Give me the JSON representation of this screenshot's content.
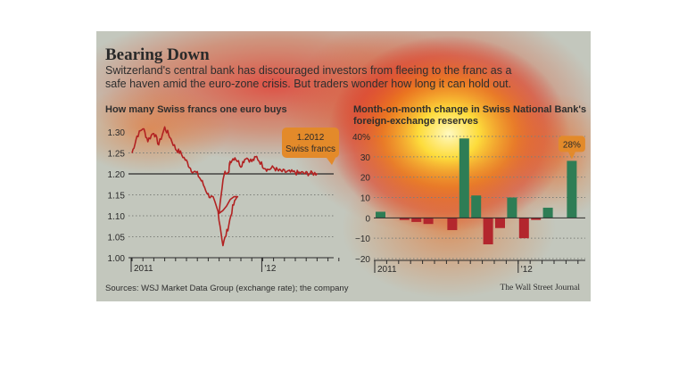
{
  "headline": "Bearing Down",
  "dek": [
    "Switzerland's central bank has discouraged investors from fleeing to the franc as a",
    "safe haven amid the euro-zone crisis. But traders wonder how long it can hold out."
  ],
  "sources": "Sources: WSJ Market Data Group (exchange rate); the company",
  "credit": "The Wall Street Journal",
  "colors": {
    "background": "#c3c7bd",
    "line": "#b22222",
    "bar_positive": "#2e7d55",
    "bar_negative": "#b3262d",
    "callout": "#e38a2a"
  },
  "chart_data": [
    {
      "type": "line",
      "title": "How many Swiss francs one euro buys",
      "ylim": [
        1.0,
        1.3
      ],
      "y_ticks": [
        "1.30",
        "1.25",
        "1.20",
        "1.15",
        "1.10",
        "1.05",
        "1.00"
      ],
      "x_tick_labels": [
        "2011",
        "'12"
      ],
      "reference_line": 1.2,
      "annotation": [
        "1.2012",
        "Swiss francs"
      ],
      "series": [
        {
          "x": [
            "2011-01",
            "2011-01",
            "2011-02",
            "2011-02",
            "2011-03",
            "2011-03",
            "2011-04",
            "2011-04",
            "2011-05",
            "2011-05",
            "2011-06",
            "2011-06",
            "2011-07",
            "2011-07",
            "2011-08",
            "2011-08",
            "2011-08",
            "2011-08",
            "2011-08",
            "2011-08",
            "2011-08",
            "2011-09",
            "2011-09",
            "2011-09",
            "2011-10",
            "2011-10",
            "2011-11",
            "2011-11",
            "2011-12",
            "2011-12",
            "2012-01",
            "2012-01",
            "2012-02",
            "2012-02",
            "2012-03",
            "2012-03",
            "2012-04",
            "2012-04",
            "2012-05",
            "2012-05",
            "2012-06"
          ],
          "values": [
            1.25,
            1.29,
            1.31,
            1.28,
            1.3,
            1.27,
            1.31,
            1.29,
            1.26,
            1.25,
            1.23,
            1.21,
            1.2,
            1.18,
            1.15,
            1.14,
            1.11,
            1.03,
            1.07,
            1.12,
            1.15,
            1.11,
            1.2,
            1.21,
            1.23,
            1.24,
            1.22,
            1.24,
            1.23,
            1.24,
            1.22,
            1.21,
            1.215,
            1.207,
            1.205,
            1.204,
            1.203,
            1.202,
            1.201,
            1.2012,
            1.2012
          ]
        }
      ]
    },
    {
      "type": "bar",
      "title": [
        "Month-on-month change in Swiss National Bank's",
        "foreign-exchange reserves"
      ],
      "ylim": [
        -20,
        40
      ],
      "y_ticks": [
        "40%",
        "30",
        "20",
        "10",
        "0",
        "−10",
        "−20"
      ],
      "x_tick_labels": [
        "2011",
        "'12"
      ],
      "annotation": "28%",
      "categories": [
        "2011-01",
        "2011-02",
        "2011-03",
        "2011-04",
        "2011-05",
        "2011-06",
        "2011-07",
        "2011-08",
        "2011-09",
        "2011-10",
        "2011-11",
        "2011-12",
        "2012-01",
        "2012-02",
        "2012-03",
        "2012-04",
        "2012-05"
      ],
      "values": [
        3,
        0,
        -1,
        -2,
        -3,
        0,
        -6,
        39,
        11,
        -13,
        -5,
        10,
        -10,
        -1,
        5,
        0,
        28
      ]
    }
  ]
}
